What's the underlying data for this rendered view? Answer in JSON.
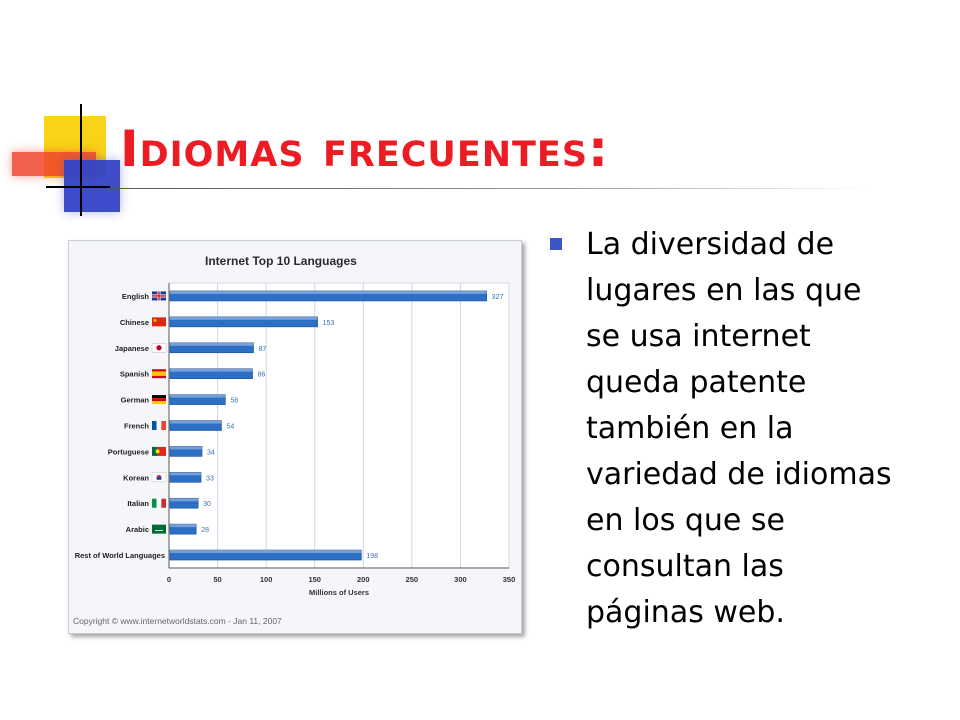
{
  "slide": {
    "title": "Idiomas frecuentes:",
    "body": "La diversidad de\nlugares en las que\nse usa internet\nqueda patente\ntambién en la\nvariedad de idiomas\nen los que se\nconsultan las\npáginas web."
  },
  "colors": {
    "title": "#ec1c24",
    "bullet": "#3a55c4",
    "bar": "#2d6fc4"
  },
  "chart_data": {
    "type": "bar",
    "orientation": "horizontal",
    "title": "Internet Top 10 Languages",
    "xlabel": "Millions of Users",
    "ylabel": "",
    "categories": [
      "English",
      "Chinese",
      "Japanese",
      "Spanish",
      "German",
      "French",
      "Portuguese",
      "Korean",
      "Italian",
      "Arabic",
      "Rest of World Languages"
    ],
    "values": [
      327,
      153,
      87,
      86,
      58,
      54,
      34,
      33,
      30,
      28,
      198
    ],
    "data_labels": [
      "327",
      "153",
      "87",
      "86",
      "58",
      "54",
      "34",
      "33",
      "30",
      "28",
      "198"
    ],
    "flag_icons": [
      "uk-flag-icon",
      "china-flag-icon",
      "japan-flag-icon",
      "spain-flag-icon",
      "germany-flag-icon",
      "france-flag-icon",
      "portugal-flag-icon",
      "korea-flag-icon",
      "italy-flag-icon",
      "saudi-flag-icon",
      "none"
    ],
    "xlim": [
      0,
      350
    ],
    "xticks": [
      0,
      50,
      100,
      150,
      200,
      250,
      300,
      350
    ],
    "grid": true,
    "legend": "none",
    "footer": "Copyright © www.internetworldstats.com - Jan 11, 2007"
  }
}
